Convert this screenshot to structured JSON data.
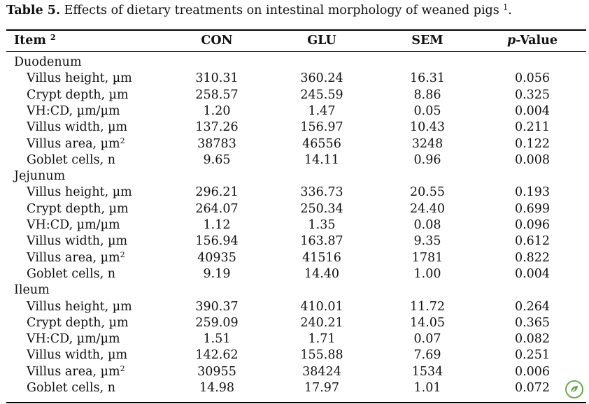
{
  "caption": {
    "label": "Table 5.",
    "text": " Effects of dietary treatments on intestinal morphology of weaned pigs ",
    "footnote": "1",
    "end": "."
  },
  "header": {
    "item": "Item ",
    "item_sup": "2",
    "con": "CON",
    "glu": "GLU",
    "sem": "SEM",
    "p_italic": "p",
    "p_rest": "-Value"
  },
  "groups": [
    {
      "name": "Duodenum",
      "rows": [
        {
          "item": "Villus height, µm",
          "sup": "",
          "con": "310.31",
          "glu": "360.24",
          "sem": "16.31",
          "p": "0.056"
        },
        {
          "item": "Crypt depth, µm",
          "sup": "",
          "con": "258.57",
          "glu": "245.59",
          "sem": "8.86",
          "p": "0.325"
        },
        {
          "item": "VH:CD, µm/µm",
          "sup": "",
          "con": "1.20",
          "glu": "1.47",
          "sem": "0.05",
          "p": "0.004"
        },
        {
          "item": "Villus width, µm",
          "sup": "",
          "con": "137.26",
          "glu": "156.97",
          "sem": "10.43",
          "p": "0.211"
        },
        {
          "item": "Villus area, µm",
          "sup": "2",
          "con": "38783",
          "glu": "46556",
          "sem": "3248",
          "p": "0.122"
        },
        {
          "item": "Goblet cells, n",
          "sup": "",
          "con": "9.65",
          "glu": "14.11",
          "sem": "0.96",
          "p": "0.008"
        }
      ]
    },
    {
      "name": "Jejunum",
      "rows": [
        {
          "item": "Villus height, µm",
          "sup": "",
          "con": "296.21",
          "glu": "336.73",
          "sem": "20.55",
          "p": "0.193"
        },
        {
          "item": "Crypt depth, µm",
          "sup": "",
          "con": "264.07",
          "glu": "250.34",
          "sem": "24.40",
          "p": "0.699"
        },
        {
          "item": "VH:CD, µm/µm",
          "sup": "",
          "con": "1.12",
          "glu": "1.35",
          "sem": "0.08",
          "p": "0.096"
        },
        {
          "item": "Villus width, µm",
          "sup": "",
          "con": "156.94",
          "glu": "163.87",
          "sem": "9.35",
          "p": "0.612"
        },
        {
          "item": "Villus area, µm",
          "sup": "2",
          "con": "40935",
          "glu": "41516",
          "sem": "1781",
          "p": "0.822"
        },
        {
          "item": "Goblet cells, n",
          "sup": "",
          "con": "9.19",
          "glu": "14.40",
          "sem": "1.00",
          "p": "0.004"
        }
      ]
    },
    {
      "name": "Ileum",
      "rows": [
        {
          "item": "Villus height, µm",
          "sup": "",
          "con": "390.37",
          "glu": "410.01",
          "sem": "11.72",
          "p": "0.264"
        },
        {
          "item": "Crypt depth, µm",
          "sup": "",
          "con": "259.09",
          "glu": "240.21",
          "sem": "14.05",
          "p": "0.365"
        },
        {
          "item": "VH:CD, µm/µm",
          "sup": "",
          "con": "1.51",
          "glu": "1.71",
          "sem": "0.07",
          "p": "0.082"
        },
        {
          "item": "Villus width, µm",
          "sup": "",
          "con": "142.62",
          "glu": "155.88",
          "sem": "7.69",
          "p": "0.251"
        },
        {
          "item": "Villus area, µm",
          "sup": "2",
          "con": "30955",
          "glu": "38424",
          "sem": "1534",
          "p": "0.006"
        },
        {
          "item": "Goblet cells, n",
          "sup": "",
          "con": "14.98",
          "glu": "17.97",
          "sem": "1.01",
          "p": "0.072"
        }
      ]
    }
  ],
  "colors": {
    "rule": "#000000",
    "logo_green": "#6aa84f"
  },
  "icons": {
    "corner_logo": "leaf-logo-icon"
  }
}
